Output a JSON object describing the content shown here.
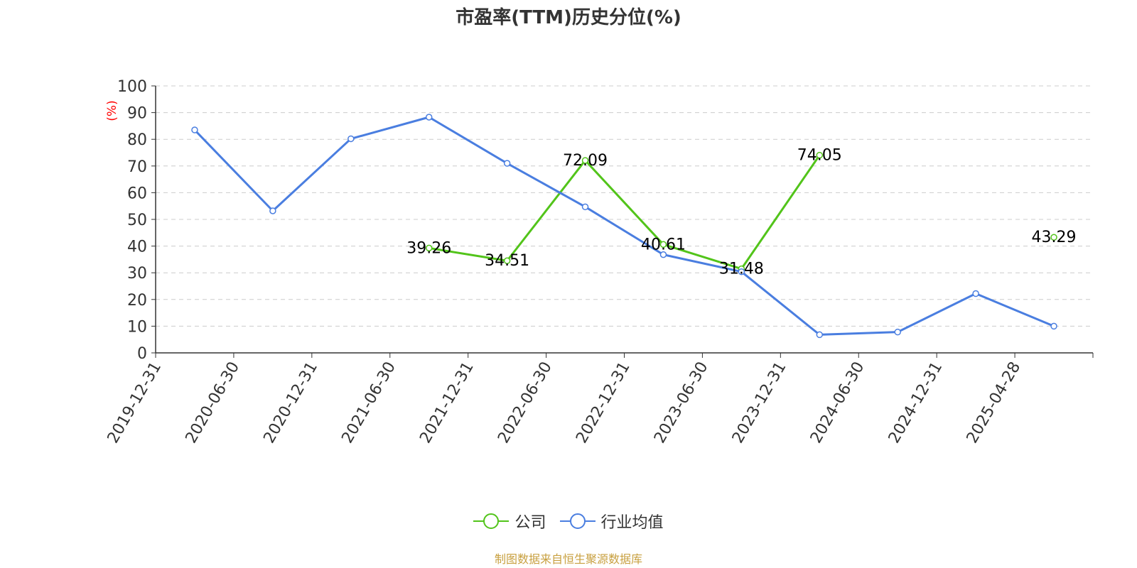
{
  "source_note": "制图数据来自恒生聚源数据库",
  "colors": {
    "company": "#52C41A",
    "industry": "#4A7EE0",
    "axis": "#333333",
    "grid": "#CCCCCC",
    "ylabel": "#FF0000",
    "source": "#C8A040"
  },
  "chart_data": {
    "type": "line",
    "title": "市盈率(TTM)历史分位(%)",
    "xlabel": "",
    "ylabel": "(%)",
    "ylim": [
      0,
      100
    ],
    "yticks": [
      0,
      10,
      20,
      30,
      40,
      50,
      60,
      70,
      80,
      90,
      100
    ],
    "grid": true,
    "legend_position": "bottom",
    "categories": [
      "2019-12-31",
      "2020-06-30",
      "2020-12-31",
      "2021-06-30",
      "2021-12-31",
      "2022-06-30",
      "2022-12-31",
      "2023-06-30",
      "2023-12-31",
      "2024-06-30",
      "2024-12-31",
      "2025-04-28"
    ],
    "series": [
      {
        "name": "公司",
        "color": "#52C41A",
        "show_labels": true,
        "values": [
          null,
          null,
          null,
          39.26,
          34.51,
          72.09,
          40.61,
          31.48,
          74.05,
          null,
          null,
          43.29
        ],
        "labels": [
          null,
          null,
          null,
          "39.26",
          "34.51",
          "72.09",
          "40.61",
          "31.48",
          "74.05",
          null,
          null,
          "43.29"
        ]
      },
      {
        "name": "行业均值",
        "color": "#4A7EE0",
        "show_labels": false,
        "values": [
          83.5,
          53.2,
          80.2,
          88.3,
          71.0,
          54.7,
          36.8,
          30.4,
          6.8,
          7.8,
          22.2,
          10.0
        ]
      }
    ]
  }
}
